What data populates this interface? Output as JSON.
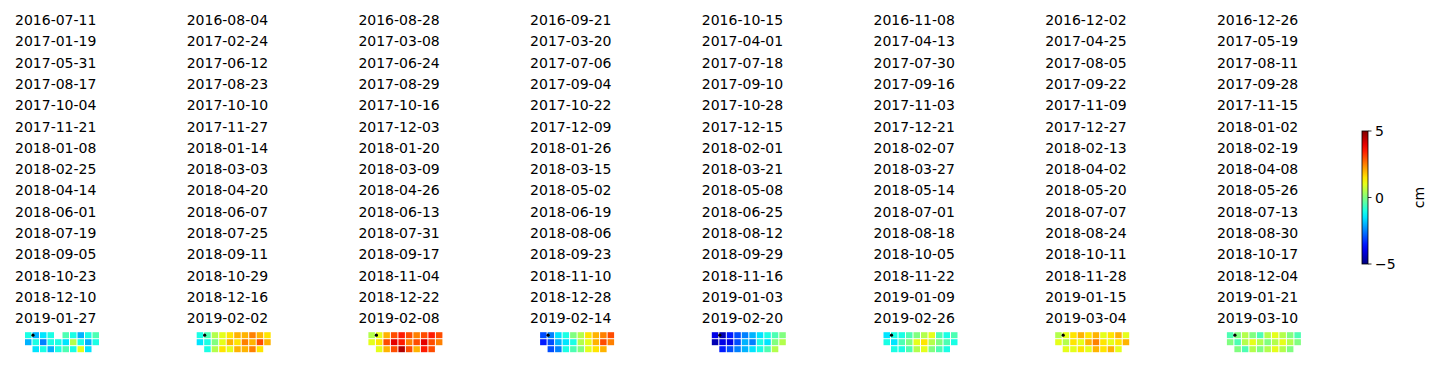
{
  "chart_data": {
    "type": "heatmap",
    "dates": [
      "2016-07-11",
      "2016-08-04",
      "2016-08-28",
      "2016-09-21",
      "2016-10-15",
      "2016-11-08",
      "2016-12-02",
      "2016-12-26",
      "2017-01-19",
      "2017-02-24",
      "2017-03-08",
      "2017-03-20",
      "2017-04-01",
      "2017-04-13",
      "2017-04-25",
      "2017-05-19",
      "2017-05-31",
      "2017-06-12",
      "2017-06-24",
      "2017-07-06",
      "2017-07-18",
      "2017-07-30",
      "2017-08-05",
      "2017-08-11",
      "2017-08-17",
      "2017-08-23",
      "2017-08-29",
      "2017-09-04",
      "2017-09-10",
      "2017-09-16",
      "2017-09-22",
      "2017-09-28",
      "2017-10-04",
      "2017-10-10",
      "2017-10-16",
      "2017-10-22",
      "2017-10-28",
      "2017-11-03",
      "2017-11-09",
      "2017-11-15",
      "2017-11-21",
      "2017-11-27",
      "2017-12-03",
      "2017-12-09",
      "2017-12-15",
      "2017-12-21",
      "2017-12-27",
      "2018-01-02",
      "2018-01-08",
      "2018-01-14",
      "2018-01-20",
      "2018-01-26",
      "2018-02-01",
      "2018-02-07",
      "2018-02-13",
      "2018-02-19",
      "2018-02-25",
      "2018-03-03",
      "2018-03-09",
      "2018-03-15",
      "2018-03-21",
      "2018-03-27",
      "2018-04-02",
      "2018-04-08",
      "2018-04-14",
      "2018-04-20",
      "2018-04-26",
      "2018-05-02",
      "2018-05-08",
      "2018-05-14",
      "2018-05-20",
      "2018-05-26",
      "2018-06-01",
      "2018-06-07",
      "2018-06-13",
      "2018-06-19",
      "2018-06-25",
      "2018-07-01",
      "2018-07-07",
      "2018-07-13",
      "2018-07-19",
      "2018-07-25",
      "2018-07-31",
      "2018-08-06",
      "2018-08-12",
      "2018-08-18",
      "2018-08-24",
      "2018-08-30",
      "2018-09-05",
      "2018-09-11",
      "2018-09-17",
      "2018-09-23",
      "2018-09-29",
      "2018-10-05",
      "2018-10-11",
      "2018-10-17",
      "2018-10-23",
      "2018-10-29",
      "2018-11-04",
      "2018-11-10",
      "2018-11-16",
      "2018-11-22",
      "2018-11-28",
      "2018-12-04",
      "2018-12-10",
      "2018-12-16",
      "2018-12-22",
      "2018-12-28",
      "2019-01-03",
      "2019-01-09",
      "2019-01-15",
      "2019-01-21",
      "2019-01-27",
      "2019-02-02",
      "2019-02-08",
      "2019-02-14",
      "2019-02-20",
      "2019-02-26",
      "2019-03-04",
      "2019-03-10"
    ],
    "cells": [
      null,
      null,
      null,
      null,
      null,
      null,
      null,
      null,
      null,
      null,
      null,
      null,
      null,
      null,
      null,
      null,
      null,
      null,
      null,
      null,
      null,
      null,
      null,
      null,
      null,
      null,
      null,
      null,
      null,
      null,
      null,
      null,
      null,
      null,
      null,
      null,
      null,
      null,
      null,
      null,
      null,
      null,
      null,
      null,
      null,
      null,
      null,
      null,
      null,
      null,
      null,
      null,
      null,
      null,
      null,
      null,
      null,
      null,
      null,
      null,
      null,
      null,
      null,
      null,
      null,
      null,
      null,
      null,
      null,
      null,
      null,
      null,
      null,
      null,
      null,
      null,
      null,
      null,
      null,
      null,
      null,
      null,
      null,
      null,
      null,
      null,
      null,
      null,
      null,
      null,
      null,
      null,
      null,
      null,
      null,
      null,
      null,
      null,
      null,
      null,
      null,
      null,
      null,
      null,
      null,
      null,
      null,
      null,
      null,
      null,
      null,
      null,
      [
        [
          -1,
          -2,
          -1.5,
          -1,
          null,
          -0.5,
          -1,
          -2,
          -1,
          -0.5
        ],
        [
          -2,
          -1,
          -2.5,
          -1,
          -1,
          -1.5,
          0.5,
          -1,
          -2,
          -1
        ],
        [
          null,
          -1.5,
          -1,
          -2,
          -1,
          -0.5,
          -1,
          1,
          -1.5,
          null
        ]
      ],
      [
        [
          -1,
          -0.5,
          0.5,
          1,
          1.5,
          2,
          2,
          2.5,
          2,
          1.5
        ],
        [
          -1.5,
          -1,
          0,
          1,
          2,
          1.5,
          2.5,
          2,
          3,
          2
        ],
        [
          null,
          -1,
          0.5,
          1.5,
          1,
          2,
          2,
          2.5,
          1.5,
          null
        ]
      ],
      [
        [
          0.5,
          1,
          2,
          3,
          3.5,
          3,
          2.5,
          3,
          3.5,
          3
        ],
        [
          1,
          1.5,
          3,
          4,
          3.5,
          2.5,
          3,
          4,
          3,
          2.5
        ],
        [
          null,
          1,
          2,
          3,
          4.5,
          3,
          2,
          3.5,
          3,
          null
        ]
      ],
      [
        [
          -3,
          -2.5,
          -1.5,
          -1,
          0,
          0.5,
          1.5,
          2,
          2.5,
          3
        ],
        [
          -3.5,
          -3,
          -2,
          -1.5,
          -1,
          0.5,
          1,
          2,
          3,
          2.5
        ],
        [
          null,
          -3,
          -2.5,
          -1,
          -0.5,
          0,
          1,
          1.5,
          2,
          null
        ]
      ],
      [
        [
          -4,
          -4.5,
          -3.5,
          -3,
          -2.5,
          -2,
          -1.5,
          -1,
          -0.5,
          0
        ],
        [
          -4.5,
          -4,
          -4,
          -3,
          -2,
          -2.5,
          -1,
          -1.5,
          0,
          0.5
        ],
        [
          null,
          -3.5,
          -3,
          -2.5,
          -2,
          -1.5,
          -1,
          -0.5,
          0.5,
          null
        ]
      ],
      [
        [
          -1.5,
          -1,
          -1,
          -0.5,
          0,
          0.5,
          1,
          -0.5,
          -1,
          -0.5
        ],
        [
          -1,
          -1.5,
          -0.5,
          0,
          1,
          1.5,
          0.5,
          0,
          -0.5,
          -1
        ],
        [
          null,
          -1,
          -1,
          -0.5,
          0.5,
          1,
          0,
          -0.5,
          -1,
          null
        ]
      ],
      [
        [
          0.5,
          1,
          1.5,
          2,
          1.5,
          2,
          1,
          1.5,
          2,
          1
        ],
        [
          1,
          0.5,
          1.5,
          1,
          2,
          2.5,
          1.5,
          1,
          1.5,
          2
        ],
        [
          null,
          1,
          1,
          1.5,
          1,
          2,
          1.5,
          2,
          1,
          null
        ]
      ],
      [
        [
          -0.5,
          0,
          0.5,
          0,
          -0.5,
          0.5,
          1,
          0.5,
          0,
          -0.5
        ],
        [
          0,
          -0.5,
          0.5,
          1,
          0.5,
          0,
          0.5,
          1,
          0.5,
          0
        ],
        [
          null,
          0,
          -0.5,
          0.5,
          0,
          0.5,
          1,
          0.5,
          0,
          null
        ]
      ]
    ],
    "colorbar_range": [
      -5,
      5
    ],
    "colorbar_ticks": [
      {
        "value": -5,
        "label": "−5"
      },
      0,
      5
    ],
    "colorbar_label": "cm"
  }
}
